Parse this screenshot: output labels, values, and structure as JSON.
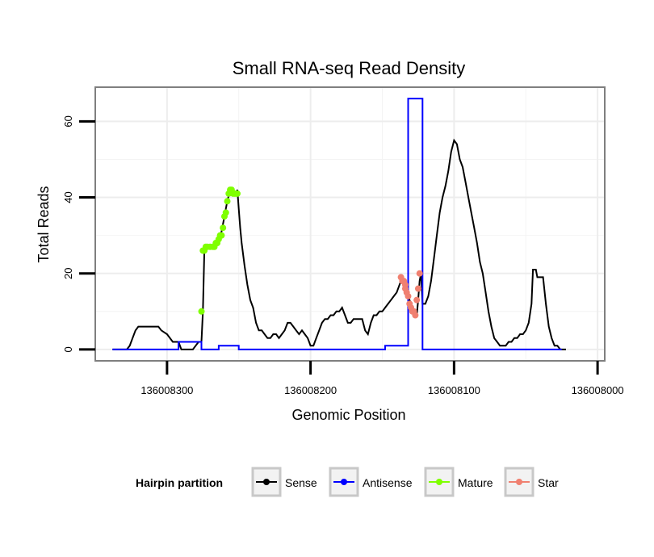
{
  "chart_data": {
    "type": "line",
    "title": "Small RNA-seq Read Density",
    "xlabel": "Genomic Position",
    "ylabel": "Total Reads",
    "x_reversed": true,
    "xlim": [
      136008350,
      136007995
    ],
    "ylim": [
      -3,
      69
    ],
    "x_ticks": [
      136008300,
      136008200,
      136008100,
      136008000
    ],
    "x_tick_labels": [
      "136008300",
      "136008200",
      "136008100",
      "136008000"
    ],
    "y_ticks": [
      0,
      20,
      40,
      60
    ],
    "y_tick_labels": [
      "0",
      "20",
      "40",
      "60"
    ],
    "grid": true,
    "legend": {
      "title": "Hairpin partition",
      "position": "bottom",
      "entries": [
        {
          "label": "Sense",
          "color": "#000000"
        },
        {
          "label": "Antisense",
          "color": "#0000ff"
        },
        {
          "label": "Mature",
          "color": "#7fff00"
        },
        {
          "label": "Star",
          "color": "#f08070"
        }
      ]
    },
    "series": [
      {
        "name": "Sense",
        "color": "#000000",
        "kind": "line",
        "points": [
          [
            136008338,
            0
          ],
          [
            136008328,
            0
          ],
          [
            136008326,
            1
          ],
          [
            136008324,
            3
          ],
          [
            136008322,
            5
          ],
          [
            136008320,
            6
          ],
          [
            136008306,
            6
          ],
          [
            136008304,
            5
          ],
          [
            136008300,
            4
          ],
          [
            136008296,
            2
          ],
          [
            136008292,
            2
          ],
          [
            136008290,
            0
          ],
          [
            136008282,
            0
          ],
          [
            136008280,
            1
          ],
          [
            136008278,
            2
          ],
          [
            136008276,
            2
          ],
          [
            136008275,
            10
          ],
          [
            136008274,
            26
          ],
          [
            136008272,
            27
          ],
          [
            136008268,
            27
          ],
          [
            136008266,
            28
          ],
          [
            136008264,
            29
          ],
          [
            136008262,
            31
          ],
          [
            136008261,
            33
          ],
          [
            136008260,
            35
          ],
          [
            136008259,
            37
          ],
          [
            136008258,
            39
          ],
          [
            136008256,
            42
          ],
          [
            136008254,
            42
          ],
          [
            136008252,
            41
          ],
          [
            136008251,
            42
          ],
          [
            136008250,
            37
          ],
          [
            136008249,
            32
          ],
          [
            136008248,
            28
          ],
          [
            136008246,
            22
          ],
          [
            136008244,
            17
          ],
          [
            136008242,
            13
          ],
          [
            136008240,
            11
          ],
          [
            136008238,
            7
          ],
          [
            136008236,
            5
          ],
          [
            136008234,
            5
          ],
          [
            136008232,
            4
          ],
          [
            136008230,
            3
          ],
          [
            136008228,
            3
          ],
          [
            136008226,
            4
          ],
          [
            136008224,
            4
          ],
          [
            136008222,
            3
          ],
          [
            136008220,
            4
          ],
          [
            136008218,
            5
          ],
          [
            136008216,
            7
          ],
          [
            136008214,
            7
          ],
          [
            136008212,
            6
          ],
          [
            136008210,
            5
          ],
          [
            136008208,
            4
          ],
          [
            136008206,
            5
          ],
          [
            136008204,
            4
          ],
          [
            136008202,
            3
          ],
          [
            136008200,
            1
          ],
          [
            136008198,
            1
          ],
          [
            136008196,
            3
          ],
          [
            136008194,
            5
          ],
          [
            136008192,
            7
          ],
          [
            136008190,
            8
          ],
          [
            136008188,
            8
          ],
          [
            136008186,
            9
          ],
          [
            136008184,
            9
          ],
          [
            136008182,
            10
          ],
          [
            136008180,
            10
          ],
          [
            136008178,
            11
          ],
          [
            136008176,
            9
          ],
          [
            136008174,
            7
          ],
          [
            136008172,
            7
          ],
          [
            136008170,
            8
          ],
          [
            136008168,
            8
          ],
          [
            136008166,
            8
          ],
          [
            136008164,
            8
          ],
          [
            136008162,
            5
          ],
          [
            136008160,
            4
          ],
          [
            136008158,
            7
          ],
          [
            136008156,
            9
          ],
          [
            136008154,
            9
          ],
          [
            136008152,
            10
          ],
          [
            136008150,
            10
          ],
          [
            136008148,
            11
          ],
          [
            136008146,
            12
          ],
          [
            136008144,
            13
          ],
          [
            136008142,
            14
          ],
          [
            136008140,
            15
          ],
          [
            136008138,
            17
          ],
          [
            136008136,
            19
          ],
          [
            136008134,
            18
          ],
          [
            136008133,
            16
          ],
          [
            136008132,
            14
          ],
          [
            136008130,
            12
          ],
          [
            136008128,
            10
          ],
          [
            136008126,
            9
          ],
          [
            136008125,
            13
          ],
          [
            136008124,
            18
          ],
          [
            136008123,
            20
          ],
          [
            136008122,
            12
          ],
          [
            136008120,
            12
          ],
          [
            136008118,
            14
          ],
          [
            136008116,
            18
          ],
          [
            136008114,
            24
          ],
          [
            136008112,
            30
          ],
          [
            136008110,
            36
          ],
          [
            136008108,
            40
          ],
          [
            136008106,
            43
          ],
          [
            136008104,
            47
          ],
          [
            136008102,
            52
          ],
          [
            136008100,
            55
          ],
          [
            136008098,
            54
          ],
          [
            136008096,
            50
          ],
          [
            136008094,
            48
          ],
          [
            136008092,
            44
          ],
          [
            136008090,
            40
          ],
          [
            136008088,
            36
          ],
          [
            136008086,
            32
          ],
          [
            136008084,
            28
          ],
          [
            136008082,
            23
          ],
          [
            136008080,
            20
          ],
          [
            136008078,
            15
          ],
          [
            136008076,
            10
          ],
          [
            136008074,
            6
          ],
          [
            136008072,
            3
          ],
          [
            136008070,
            2
          ],
          [
            136008068,
            1
          ],
          [
            136008066,
            1
          ],
          [
            136008064,
            1
          ],
          [
            136008062,
            2
          ],
          [
            136008060,
            2
          ],
          [
            136008058,
            3
          ],
          [
            136008056,
            3
          ],
          [
            136008054,
            4
          ],
          [
            136008052,
            4
          ],
          [
            136008050,
            5
          ],
          [
            136008048,
            7
          ],
          [
            136008046,
            12
          ],
          [
            136008045,
            21
          ],
          [
            136008043,
            21
          ],
          [
            136008042,
            19
          ],
          [
            136008038,
            19
          ],
          [
            136008036,
            12
          ],
          [
            136008034,
            6
          ],
          [
            136008032,
            3
          ],
          [
            136008030,
            1
          ],
          [
            136008028,
            1
          ],
          [
            136008026,
            0
          ],
          [
            136008022,
            0
          ]
        ]
      },
      {
        "name": "Antisense",
        "color": "#0000ff",
        "kind": "line",
        "points": [
          [
            136008338,
            0
          ],
          [
            136008292,
            0
          ],
          [
            136008292,
            2
          ],
          [
            136008276,
            2
          ],
          [
            136008276,
            0
          ],
          [
            136008264,
            0
          ],
          [
            136008264,
            1
          ],
          [
            136008250,
            1
          ],
          [
            136008250,
            0
          ],
          [
            136008148,
            0
          ],
          [
            136008148,
            1
          ],
          [
            136008132,
            1
          ],
          [
            136008132,
            66
          ],
          [
            136008122,
            66
          ],
          [
            136008122,
            0
          ],
          [
            136008025,
            0
          ]
        ]
      },
      {
        "name": "Mature",
        "color": "#7fff00",
        "kind": "points",
        "points": [
          [
            136008276,
            10
          ],
          [
            136008275,
            26
          ],
          [
            136008274,
            26
          ],
          [
            136008273,
            27
          ],
          [
            136008272,
            27
          ],
          [
            136008270,
            27
          ],
          [
            136008268,
            27
          ],
          [
            136008267,
            27
          ],
          [
            136008266,
            28
          ],
          [
            136008265,
            28
          ],
          [
            136008264,
            29
          ],
          [
            136008263,
            30
          ],
          [
            136008262,
            30
          ],
          [
            136008261,
            32
          ],
          [
            136008260,
            35
          ],
          [
            136008259,
            36
          ],
          [
            136008258,
            39
          ],
          [
            136008257,
            41
          ],
          [
            136008256,
            42
          ],
          [
            136008255,
            42
          ],
          [
            136008254,
            41
          ],
          [
            136008253,
            41
          ],
          [
            136008252,
            41
          ],
          [
            136008251,
            41
          ]
        ]
      },
      {
        "name": "Star",
        "color": "#f08070",
        "kind": "points",
        "points": [
          [
            136008137,
            19
          ],
          [
            136008136,
            18
          ],
          [
            136008135,
            18
          ],
          [
            136008134,
            17
          ],
          [
            136008134,
            16
          ],
          [
            136008133,
            15
          ],
          [
            136008132,
            14
          ],
          [
            136008131,
            12
          ],
          [
            136008130,
            11
          ],
          [
            136008129,
            10
          ],
          [
            136008128,
            10
          ],
          [
            136008127,
            9
          ],
          [
            136008126,
            13
          ],
          [
            136008125,
            16
          ],
          [
            136008124,
            20
          ]
        ]
      }
    ]
  }
}
